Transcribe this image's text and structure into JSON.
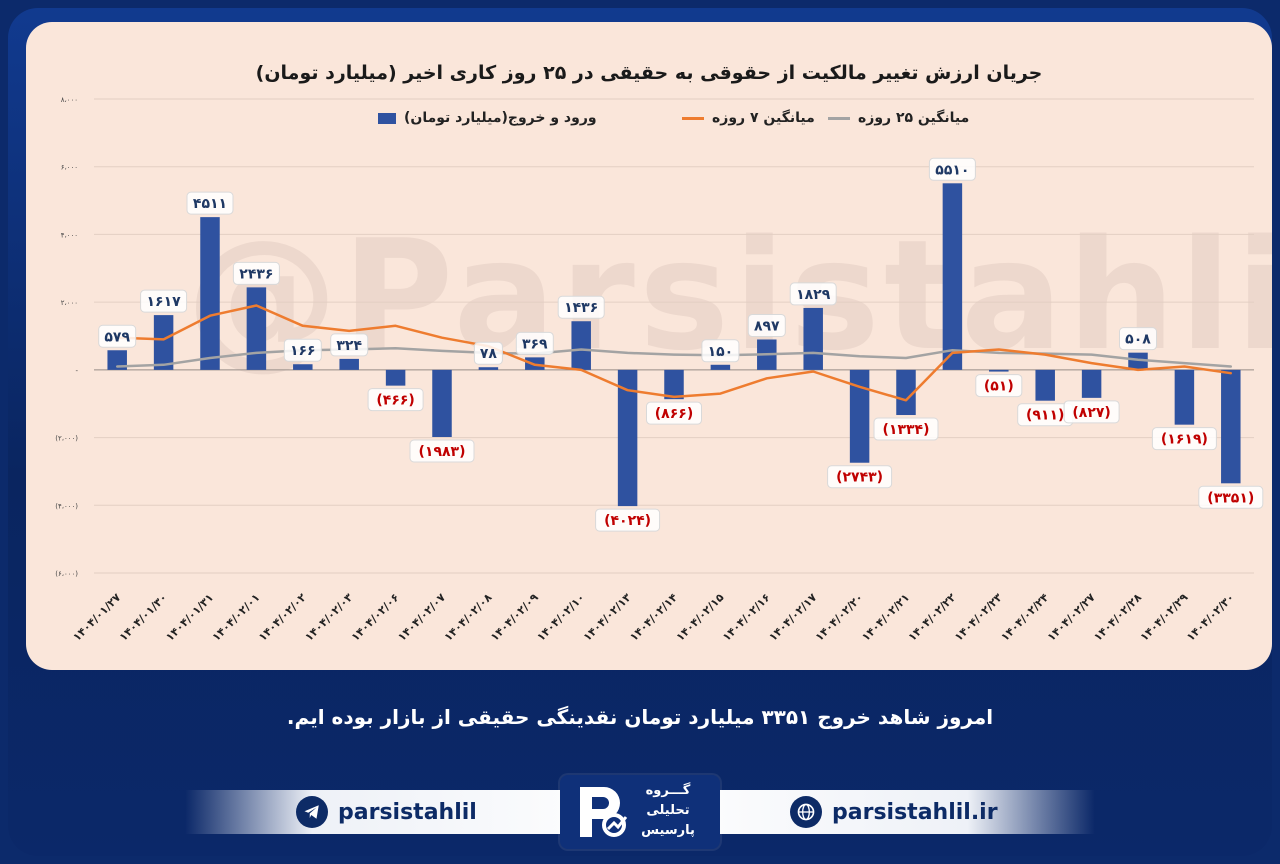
{
  "watermark": "@Parsistahlil",
  "caption": "امروز شاهد خروج ۳۳۵۱ میلیارد تومان نقدینگی حقیقی از بازار بوده ایم.",
  "footer": {
    "telegram_handle": "parsistahlil",
    "website": "parsistahlil.ir",
    "logo_lines": [
      "گـــروه",
      "تحلیلی",
      "پارسیس"
    ]
  },
  "colors": {
    "bar": "#2f52a0",
    "ma7": "#ee7c2f",
    "ma25": "#a3a3a3",
    "negative_label": "#c00000",
    "positive_label": "#1f3864"
  },
  "chart_data": {
    "type": "bar",
    "title": "جریان ارزش تغییر مالکیت از حقوقی به حقیقی در ۲۵ روز کاری اخیر (میلیارد تومان)",
    "ylim": [
      -6000,
      8000
    ],
    "yticks": [
      8000,
      6000,
      4000,
      2000,
      0,
      -2000,
      -4000,
      -6000
    ],
    "ytick_labels": [
      "۸،۰۰۰",
      "۶،۰۰۰",
      "۴،۰۰۰",
      "۲،۰۰۰",
      "-",
      "(۲،۰۰۰)",
      "(۴،۰۰۰)",
      "(۶،۰۰۰)"
    ],
    "grid": true,
    "legend_position": "top",
    "categories": [
      "۱۴۰۴/۰۱/۲۷",
      "۱۴۰۴/۰۱/۳۰",
      "۱۴۰۴/۰۱/۳۱",
      "۱۴۰۴/۰۲/۰۱",
      "۱۴۰۴/۰۲/۰۲",
      "۱۴۰۴/۰۲/۰۳",
      "۱۴۰۴/۰۲/۰۶",
      "۱۴۰۴/۰۲/۰۷",
      "۱۴۰۴/۰۲/۰۸",
      "۱۴۰۴/۰۲/۰۹",
      "۱۴۰۴/۰۲/۱۰",
      "۱۴۰۴/۰۲/۱۳",
      "۱۴۰۴/۰۲/۱۴",
      "۱۴۰۴/۰۲/۱۵",
      "۱۴۰۴/۰۲/۱۶",
      "۱۴۰۴/۰۲/۱۷",
      "۱۴۰۴/۰۲/۲۰",
      "۱۴۰۴/۰۲/۲۱",
      "۱۴۰۴/۰۲/۲۲",
      "۱۴۰۴/۰۲/۲۳",
      "۱۴۰۴/۰۲/۲۴",
      "۱۴۰۴/۰۲/۲۷",
      "۱۴۰۴/۰۲/۲۸",
      "۱۴۰۴/۰۲/۲۹",
      "۱۴۰۴/۰۲/۳۰"
    ],
    "series": [
      {
        "name": "ورود و خروج(میلیارد تومان)",
        "type": "bar",
        "values": [
          579,
          1617,
          4511,
          2436,
          166,
          324,
          -466,
          -1983,
          78,
          369,
          1436,
          -4024,
          -866,
          150,
          897,
          1829,
          -2743,
          -1334,
          5510,
          -51,
          -911,
          -827,
          508,
          -1619,
          -3351
        ],
        "labels": [
          "۵۷۹",
          "۱۶۱۷",
          "۴۵۱۱",
          "۲۴۳۶",
          "۱۶۶",
          "۳۲۴",
          "(۴۶۶)",
          "(۱۹۸۳)",
          "۷۸",
          "۳۶۹",
          "۱۴۳۶",
          "(۴۰۲۴)",
          "(۸۶۶)",
          "۱۵۰",
          "۸۹۷",
          "۱۸۲۹",
          "(۲۷۴۳)",
          "(۱۳۳۴)",
          "۵۵۱۰",
          "(۵۱)",
          "(۹۱۱)",
          "(۸۲۷)",
          "۵۰۸",
          "(۱۶۱۹)",
          "(۳۳۵۱)"
        ]
      },
      {
        "name": "میانگین ۷ روزه",
        "type": "line",
        "values": [
          950,
          900,
          1600,
          1900,
          1300,
          1150,
          1300,
          950,
          700,
          150,
          0,
          -600,
          -800,
          -700,
          -250,
          -50,
          -500,
          -900,
          500,
          600,
          450,
          200,
          0,
          100,
          -100
        ]
      },
      {
        "name": "میانگین ۲۵ روزه",
        "type": "line",
        "values": [
          100,
          150,
          350,
          500,
          580,
          600,
          640,
          560,
          500,
          480,
          600,
          500,
          450,
          430,
          460,
          500,
          400,
          350,
          580,
          500,
          480,
          450,
          300,
          200,
          100
        ]
      }
    ]
  }
}
